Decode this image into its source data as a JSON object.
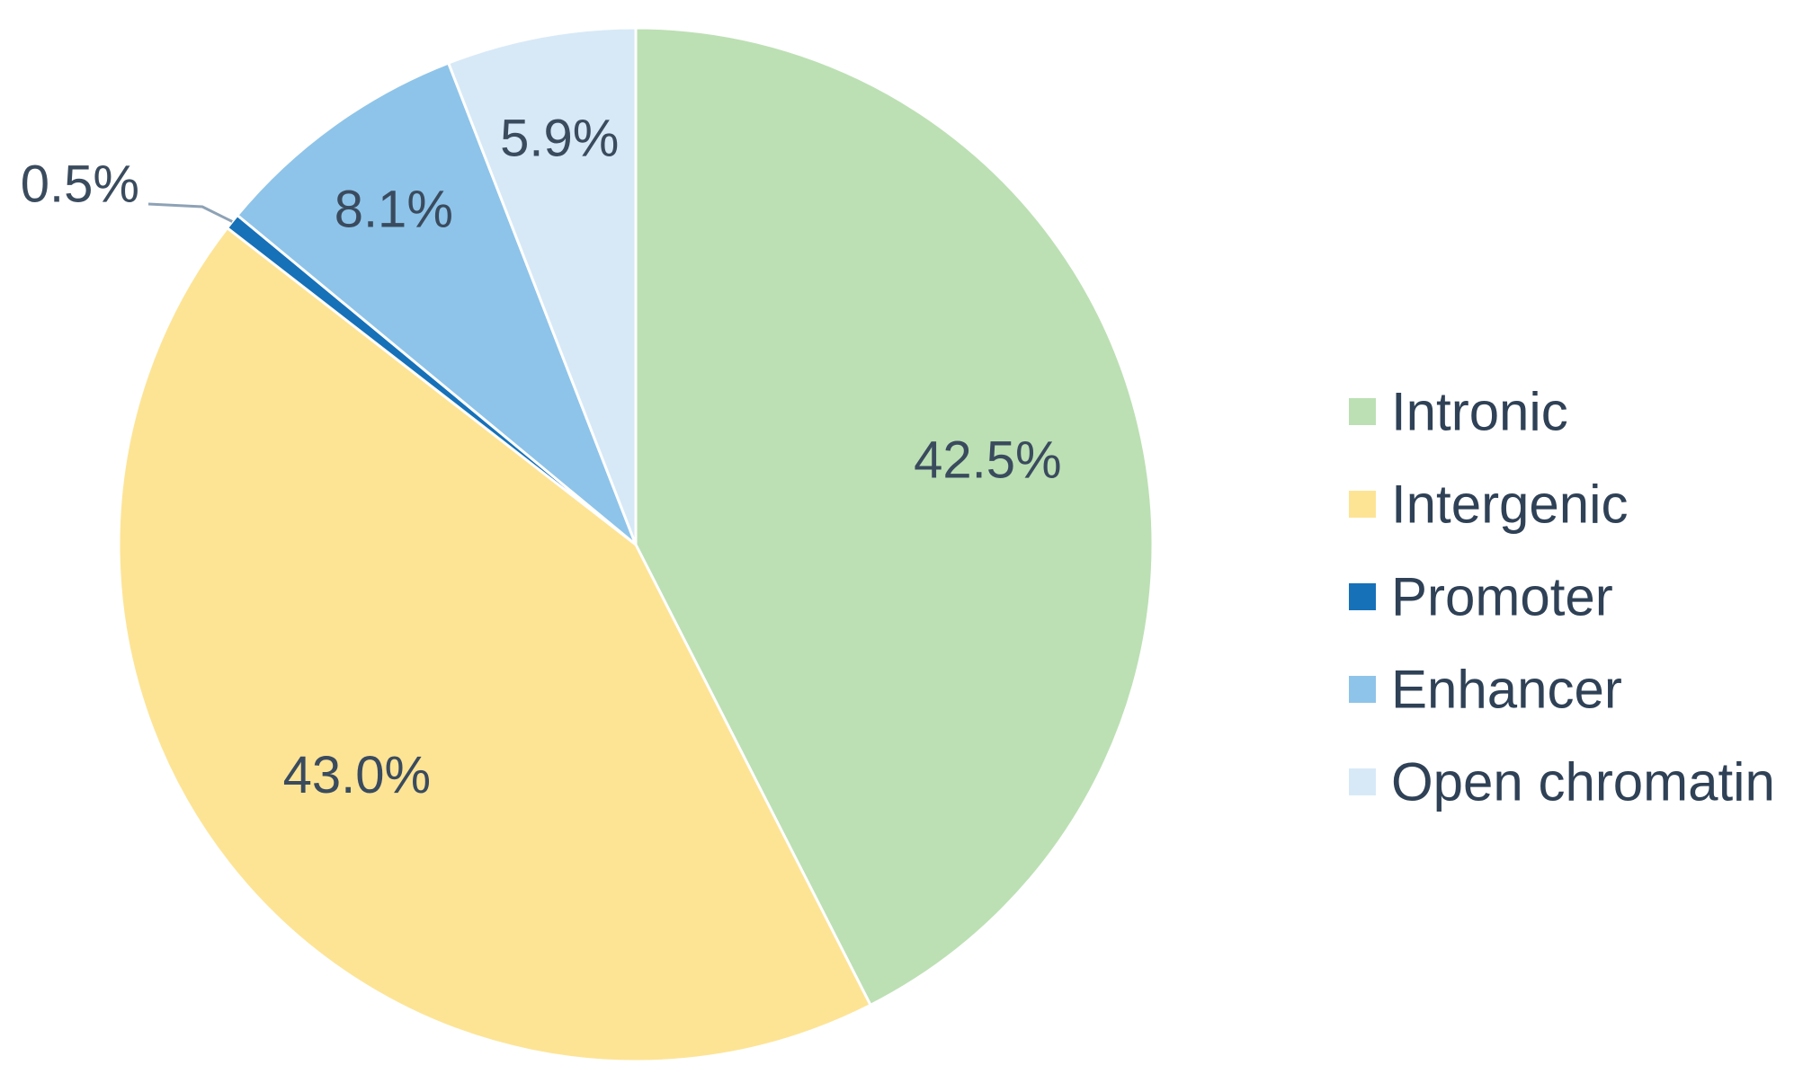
{
  "chart_data": {
    "type": "pie",
    "title": "",
    "legend_position": "right",
    "slices": [
      {
        "name": "Intronic",
        "value": 42.5,
        "label": "42.5%",
        "color": "#bce0b4"
      },
      {
        "name": "Intergenic",
        "value": 43.0,
        "label": "43.0%",
        "color": "#fde495"
      },
      {
        "name": "Promoter",
        "value": 0.5,
        "label": "0.5%",
        "color": "#1671b8"
      },
      {
        "name": "Enhancer",
        "value": 8.1,
        "label": "8.1%",
        "color": "#8ec4e9"
      },
      {
        "name": "Open chromatin",
        "value": 5.9,
        "label": "5.9%",
        "color": "#d7e9f7"
      }
    ]
  }
}
